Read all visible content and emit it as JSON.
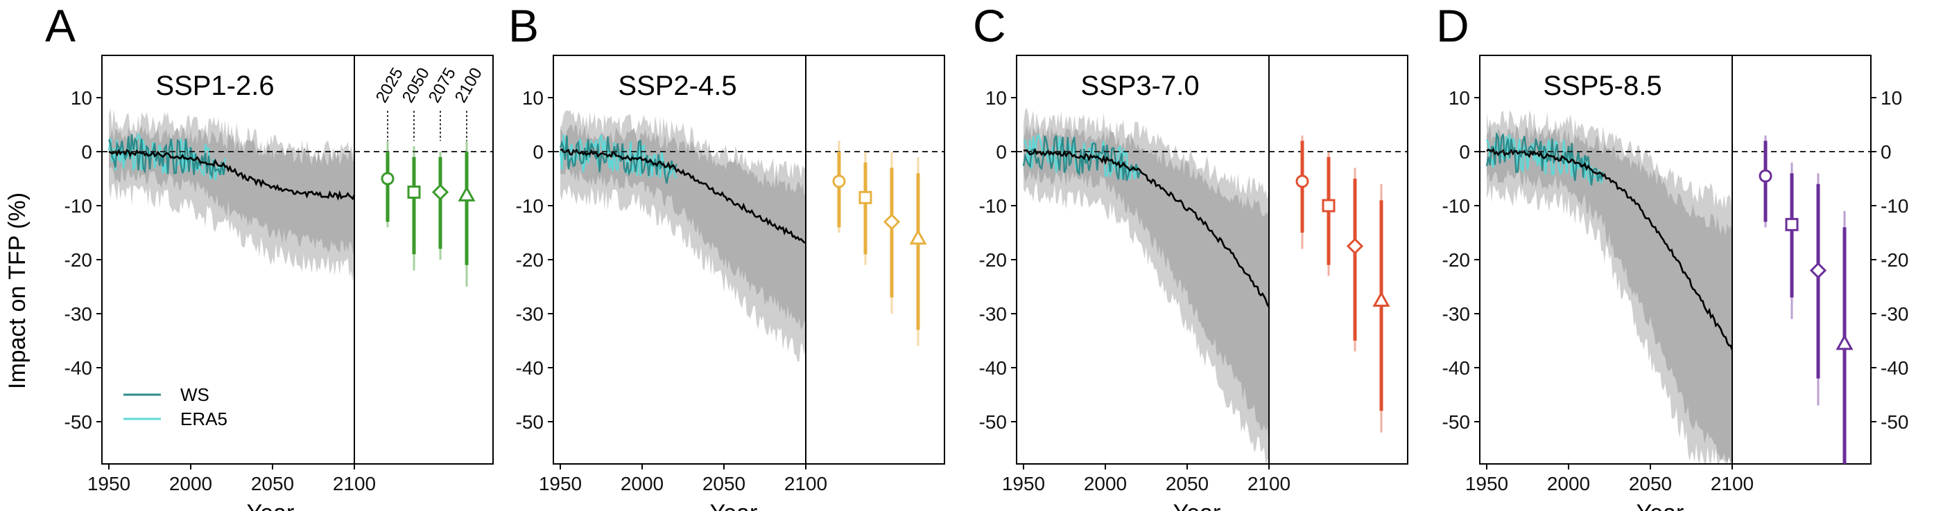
{
  "chart_data": {
    "type": "line",
    "panel_letters": [
      "A",
      "B",
      "C",
      "D"
    ],
    "ylabel": "Impact on TFP (%)",
    "xlabel": "Year",
    "x_ticks": [
      "1950",
      "2000",
      "2050",
      "2100"
    ],
    "y_ticks": [
      "10",
      "0",
      "-10",
      "-20",
      "-30",
      "-40",
      "-50"
    ],
    "y_tick_values": [
      10,
      0,
      -10,
      -20,
      -30,
      -40,
      -50
    ],
    "xlim": [
      1945,
      2100
    ],
    "ylim": [
      -58,
      18
    ],
    "zero_line": "dashed",
    "bracket_years": [
      "2025",
      "2050",
      "2075",
      "2100"
    ],
    "legend": {
      "placement": "bottom-left of panel A",
      "entries": [
        {
          "label": "WS",
          "color": "#2e8b8b"
        },
        {
          "label": "ERA5",
          "color": "#5fd8d8"
        }
      ]
    },
    "colors": {
      "mean_line": "#000000",
      "band_outer": "#cfcfcf",
      "band_inner": "#b0b0b0",
      "ws": "#2e8b8b",
      "era5": "#5fd8d8"
    },
    "panels": [
      {
        "letter": "A",
        "title": "SSP1-2.6",
        "color": "#3a9a2a",
        "mean": [
          [
            1950,
            0
          ],
          [
            1980,
            -0.5
          ],
          [
            2000,
            -1.2
          ],
          [
            2020,
            -2.5
          ],
          [
            2035,
            -5
          ],
          [
            2050,
            -6.5
          ],
          [
            2070,
            -7.8
          ],
          [
            2100,
            -8.3
          ]
        ],
        "band_inner": [
          [
            1950,
            3.5,
            -4
          ],
          [
            2000,
            3,
            -6
          ],
          [
            2020,
            2,
            -10
          ],
          [
            2050,
            0,
            -15
          ],
          [
            2075,
            -1,
            -17
          ],
          [
            2100,
            -1,
            -18
          ]
        ],
        "band_outer": [
          [
            1950,
            6,
            -7
          ],
          [
            2000,
            5,
            -10
          ],
          [
            2020,
            4,
            -14
          ],
          [
            2050,
            1,
            -19
          ],
          [
            2075,
            0,
            -21
          ],
          [
            2100,
            0,
            -22
          ]
        ],
        "projections": [
          {
            "year": "2025",
            "marker": "circle",
            "median": -5,
            "likely": [
              -13,
              0
            ],
            "range": [
              -14,
              2
            ]
          },
          {
            "year": "2050",
            "marker": "square",
            "median": -7.5,
            "likely": [
              -19,
              -1
            ],
            "range": [
              -22,
              1
            ]
          },
          {
            "year": "2075",
            "marker": "diamond",
            "median": -7.5,
            "likely": [
              -18,
              -1
            ],
            "range": [
              -20,
              0
            ]
          },
          {
            "year": "2100",
            "marker": "triangle",
            "median": -8,
            "likely": [
              -21,
              0
            ],
            "range": [
              -25,
              2
            ]
          }
        ]
      },
      {
        "letter": "B",
        "title": "SSP2-4.5",
        "color": "#e8b040",
        "mean": [
          [
            1950,
            0
          ],
          [
            1980,
            -0.5
          ],
          [
            2000,
            -1.5
          ],
          [
            2020,
            -3
          ],
          [
            2040,
            -6.5
          ],
          [
            2060,
            -10
          ],
          [
            2080,
            -13.5
          ],
          [
            2100,
            -16.5
          ]
        ],
        "band_inner": [
          [
            1950,
            3.5,
            -4
          ],
          [
            2000,
            3,
            -6
          ],
          [
            2020,
            1.5,
            -10
          ],
          [
            2050,
            -2,
            -20
          ],
          [
            2075,
            -5,
            -27
          ],
          [
            2100,
            -7,
            -32
          ]
        ],
        "band_outer": [
          [
            1950,
            6,
            -7
          ],
          [
            2000,
            5,
            -10
          ],
          [
            2020,
            4,
            -14
          ],
          [
            2050,
            0,
            -24
          ],
          [
            2075,
            -3,
            -32
          ],
          [
            2100,
            -4,
            -38
          ]
        ],
        "projections": [
          {
            "year": "2025",
            "marker": "circle",
            "median": -5.5,
            "likely": [
              -14,
              0
            ],
            "range": [
              -15,
              2
            ]
          },
          {
            "year": "2050",
            "marker": "square",
            "median": -8.5,
            "likely": [
              -19,
              -2
            ],
            "range": [
              -21,
              0
            ]
          },
          {
            "year": "2075",
            "marker": "diamond",
            "median": -13,
            "likely": [
              -27,
              -3
            ],
            "range": [
              -30,
              0
            ]
          },
          {
            "year": "2100",
            "marker": "triangle",
            "median": -16,
            "likely": [
              -33,
              -4
            ],
            "range": [
              -36,
              -1
            ]
          }
        ]
      },
      {
        "letter": "C",
        "title": "SSP3-7.0",
        "color": "#e05030",
        "mean": [
          [
            1950,
            0
          ],
          [
            1980,
            -0.5
          ],
          [
            2000,
            -1.5
          ],
          [
            2020,
            -3.5
          ],
          [
            2040,
            -8
          ],
          [
            2060,
            -13
          ],
          [
            2080,
            -20
          ],
          [
            2100,
            -28.5
          ]
        ],
        "band_inner": [
          [
            1950,
            3.5,
            -4
          ],
          [
            2000,
            3,
            -6
          ],
          [
            2020,
            1,
            -12
          ],
          [
            2050,
            -3,
            -27
          ],
          [
            2075,
            -8,
            -40
          ],
          [
            2100,
            -11,
            -53
          ]
        ],
        "band_outer": [
          [
            1950,
            6,
            -7
          ],
          [
            2000,
            5,
            -10
          ],
          [
            2020,
            3.5,
            -16
          ],
          [
            2050,
            -1,
            -32
          ],
          [
            2075,
            -5,
            -46
          ],
          [
            2100,
            -7,
            -58
          ]
        ],
        "projections": [
          {
            "year": "2025",
            "marker": "circle",
            "median": -5.5,
            "likely": [
              -15,
              2
            ],
            "range": [
              -18,
              3
            ]
          },
          {
            "year": "2050",
            "marker": "square",
            "median": -10,
            "likely": [
              -21,
              -1
            ],
            "range": [
              -23,
              0
            ]
          },
          {
            "year": "2075",
            "marker": "diamond",
            "median": -17.5,
            "likely": [
              -35,
              -5
            ],
            "range": [
              -37,
              -3
            ]
          },
          {
            "year": "2100",
            "marker": "triangle",
            "median": -27.5,
            "likely": [
              -48,
              -9
            ],
            "range": [
              -52,
              -6
            ]
          }
        ]
      },
      {
        "letter": "D",
        "title": "SSP5-8.5",
        "color": "#6a2f9a",
        "mean": [
          [
            1950,
            0
          ],
          [
            1980,
            -0.5
          ],
          [
            2000,
            -1.5
          ],
          [
            2020,
            -4
          ],
          [
            2040,
            -9
          ],
          [
            2060,
            -17
          ],
          [
            2080,
            -27
          ],
          [
            2100,
            -36.5
          ]
        ],
        "band_inner": [
          [
            1950,
            3.5,
            -4
          ],
          [
            2000,
            3,
            -6
          ],
          [
            2020,
            1,
            -13
          ],
          [
            2050,
            -4,
            -32
          ],
          [
            2075,
            -11,
            -50
          ],
          [
            2100,
            -15,
            -58
          ]
        ],
        "band_outer": [
          [
            1950,
            6,
            -7
          ],
          [
            2000,
            5,
            -10
          ],
          [
            2020,
            3.5,
            -17
          ],
          [
            2050,
            -2,
            -38
          ],
          [
            2075,
            -7,
            -56
          ],
          [
            2100,
            -9,
            -58
          ]
        ],
        "projections": [
          {
            "year": "2025",
            "marker": "circle",
            "median": -4.5,
            "likely": [
              -13,
              2
            ],
            "range": [
              -14,
              3
            ]
          },
          {
            "year": "2050",
            "marker": "square",
            "median": -13.5,
            "likely": [
              -27,
              -4
            ],
            "range": [
              -31,
              -2
            ]
          },
          {
            "year": "2075",
            "marker": "diamond",
            "median": -22,
            "likely": [
              -42,
              -6
            ],
            "range": [
              -47,
              -4
            ]
          },
          {
            "year": "2100",
            "marker": "triangle",
            "median": -35.5,
            "likely": [
              -58,
              -14
            ],
            "range": [
              -58,
              -11
            ]
          }
        ]
      }
    ]
  }
}
